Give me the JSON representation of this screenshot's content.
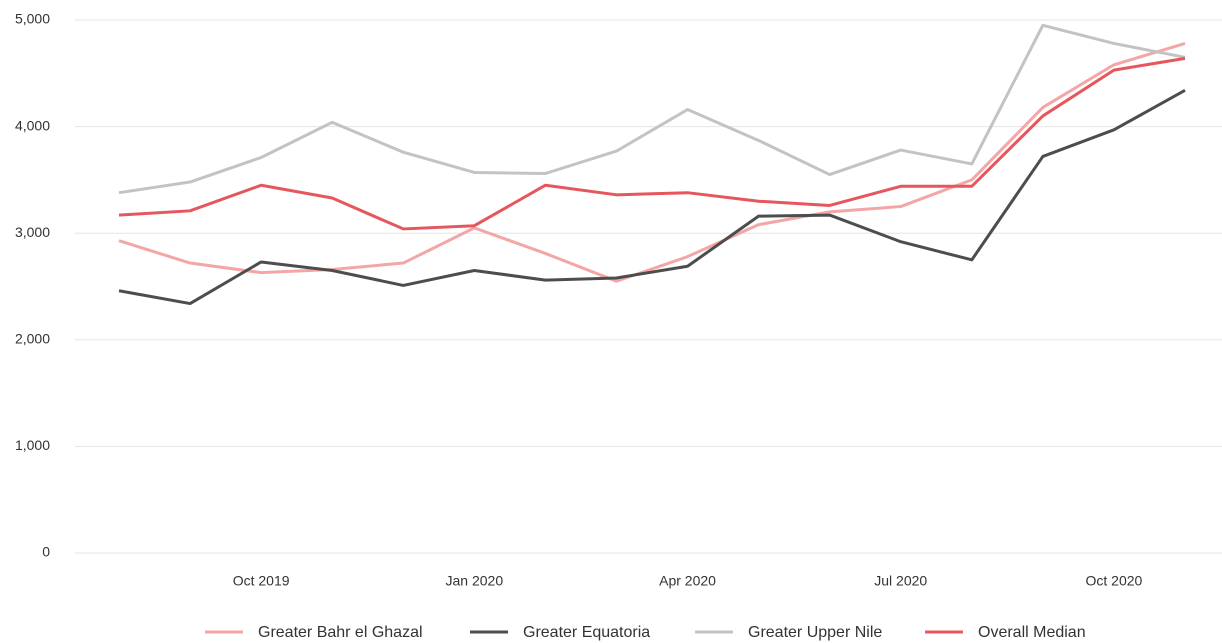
{
  "chart_data": {
    "type": "line",
    "categories": [
      null,
      null,
      "Oct 2019",
      null,
      null,
      "Jan 2020",
      null,
      null,
      "Apr 2020",
      null,
      null,
      "Jul 2020",
      null,
      null,
      "Oct 2020",
      null
    ],
    "series": [
      {
        "name": "Greater Bahr el Ghazal",
        "color": "#f4a6a6",
        "values": [
          2930,
          2720,
          2630,
          2660,
          2720,
          3050,
          2810,
          2550,
          2780,
          3080,
          3200,
          3250,
          3500,
          4180,
          4580,
          4780
        ]
      },
      {
        "name": "Greater Equatoria",
        "color": "#4d4d4d",
        "values": [
          2460,
          2340,
          2730,
          2650,
          2510,
          2650,
          2560,
          2580,
          2690,
          3160,
          3170,
          2920,
          2750,
          3720,
          3970,
          4340
        ]
      },
      {
        "name": "Greater Upper Nile",
        "color": "#c3c3c3",
        "values": [
          3380,
          3480,
          3710,
          4040,
          3760,
          3570,
          3560,
          3770,
          4160,
          3870,
          3550,
          3780,
          3650,
          4950,
          4780,
          4650
        ]
      },
      {
        "name": "Overall Median",
        "color": "#e5575c",
        "values": [
          3170,
          3210,
          3450,
          3330,
          3040,
          3070,
          3450,
          3360,
          3380,
          3300,
          3260,
          3440,
          3440,
          4100,
          4530,
          4640
        ]
      }
    ],
    "ylim": [
      0,
      5000
    ],
    "yticks": [
      0,
      {
        "value": 1000,
        "label": "1,000"
      },
      {
        "value": 2000,
        "label": "2,000"
      },
      {
        "value": 3000,
        "label": "3,000"
      },
      {
        "value": 4000,
        "label": "4,000"
      },
      {
        "value": 5000,
        "label": "5,000"
      }
    ],
    "grid": true,
    "legend": "bottom"
  }
}
